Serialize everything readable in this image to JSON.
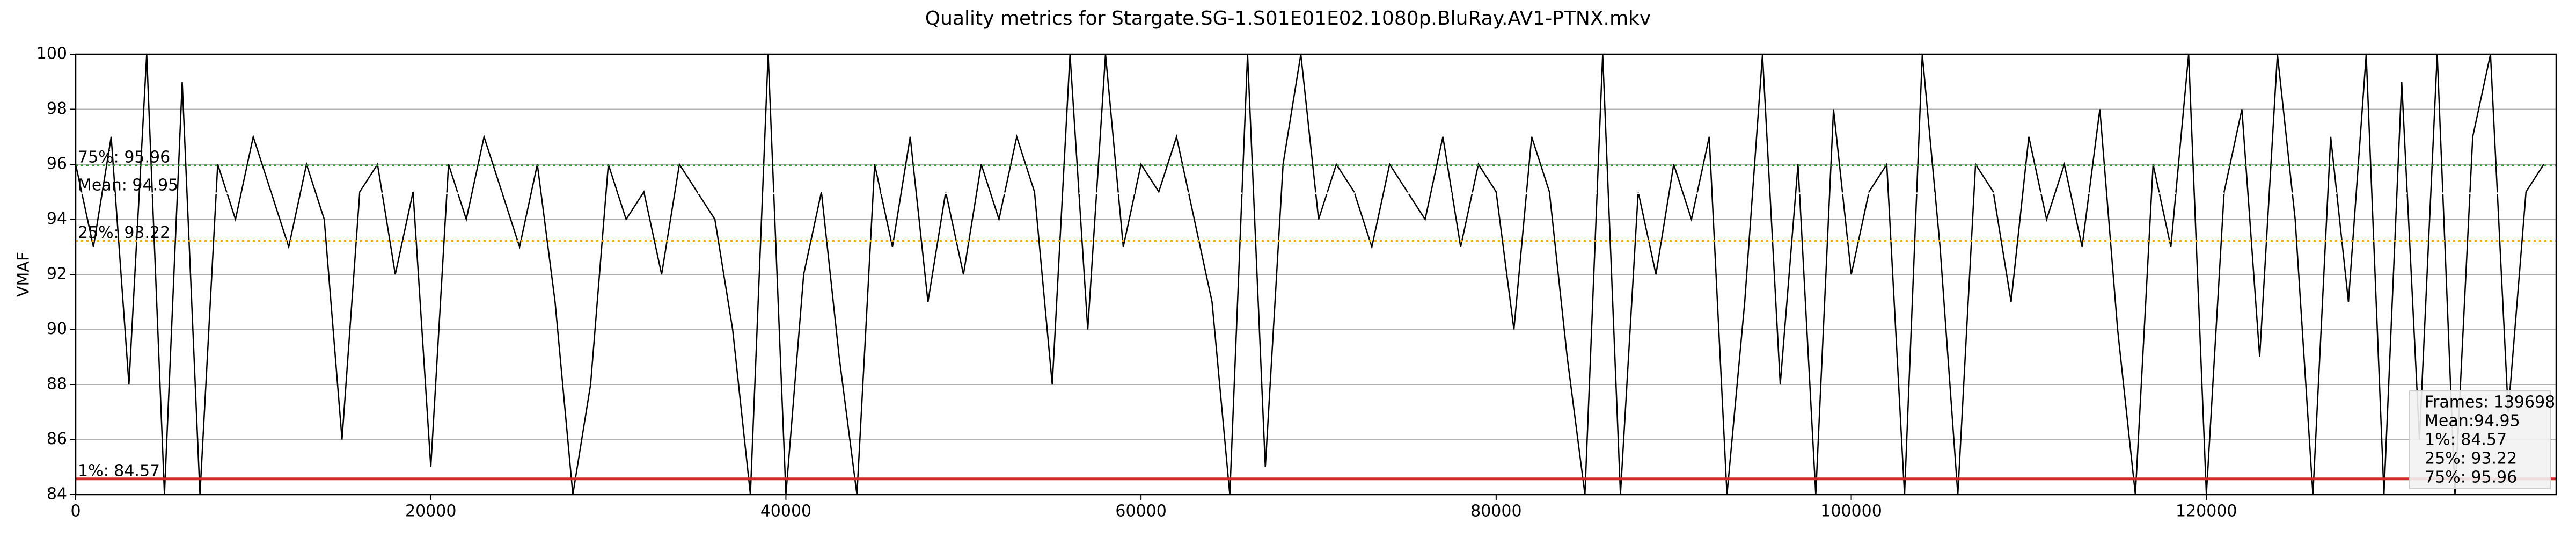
{
  "chart_data": {
    "type": "line",
    "title": "Quality metrics for Stargate.SG-1.S01E01E02.1080p.BluRay.AV1-PTNX.mkv",
    "y_label": "VMAF",
    "color": "#000000",
    "grid": true,
    "xlim": [
      0,
      139698
    ],
    "ylim": [
      84,
      100
    ],
    "xticks": [
      0,
      20000,
      40000,
      60000,
      80000,
      100000,
      120000
    ],
    "yticks": [
      84,
      86,
      88,
      90,
      92,
      94,
      96,
      98,
      100
    ],
    "x": [
      0,
      1000,
      2000,
      3000,
      4000,
      5000,
      6000,
      7000,
      8000,
      9000,
      10000,
      11000,
      12000,
      13000,
      14000,
      15000,
      16000,
      17000,
      18000,
      19000,
      20000,
      21000,
      22000,
      23000,
      24000,
      25000,
      26000,
      27000,
      28000,
      29000,
      30000,
      31000,
      32000,
      33000,
      34000,
      35000,
      36000,
      37000,
      38000,
      39000,
      40000,
      41000,
      42000,
      43000,
      44000,
      45000,
      46000,
      47000,
      48000,
      49000,
      50000,
      51000,
      52000,
      53000,
      54000,
      55000,
      56000,
      57000,
      58000,
      59000,
      60000,
      61000,
      62000,
      63000,
      64000,
      65000,
      66000,
      67000,
      68000,
      69000,
      70000,
      71000,
      72000,
      73000,
      74000,
      75000,
      76000,
      77000,
      78000,
      79000,
      80000,
      81000,
      82000,
      83000,
      84000,
      85000,
      86000,
      87000,
      88000,
      89000,
      90000,
      91000,
      92000,
      93000,
      94000,
      95000,
      96000,
      97000,
      98000,
      99000,
      100000,
      101000,
      102000,
      103000,
      104000,
      105000,
      106000,
      107000,
      108000,
      109000,
      110000,
      111000,
      112000,
      113000,
      114000,
      115000,
      116000,
      117000,
      118000,
      119000,
      120000,
      121000,
      122000,
      123000,
      124000,
      125000,
      126000,
      127000,
      128000,
      129000,
      130000,
      131000,
      132000,
      133000,
      134000,
      135000,
      136000,
      137000,
      138000,
      139000
    ],
    "values": [
      96,
      93,
      97,
      88,
      100,
      84,
      99,
      84,
      96,
      94,
      97,
      95,
      93,
      96,
      94,
      86,
      95,
      96,
      92,
      95,
      85,
      96,
      94,
      97,
      95,
      93,
      96,
      91,
      84,
      88,
      96,
      94,
      95,
      92,
      96,
      95,
      94,
      90,
      84,
      100,
      84,
      92,
      95,
      89,
      84,
      96,
      93,
      97,
      91,
      95,
      92,
      96,
      94,
      97,
      95,
      88,
      100,
      90,
      100,
      93,
      96,
      95,
      97,
      94,
      91,
      84,
      100,
      85,
      96,
      100,
      94,
      96,
      95,
      93,
      96,
      95,
      94,
      97,
      93,
      96,
      95,
      90,
      97,
      95,
      89,
      84,
      100,
      84,
      95,
      92,
      96,
      94,
      97,
      84,
      91,
      100,
      88,
      96,
      84,
      98,
      92,
      95,
      96,
      84,
      100,
      93,
      84,
      96,
      95,
      91,
      97,
      94,
      96,
      93,
      98,
      90,
      84,
      96,
      93,
      100,
      84,
      95,
      98,
      89,
      100,
      94,
      84,
      97,
      91,
      100,
      84,
      99,
      86,
      100,
      84,
      97,
      100,
      87,
      95,
      96
    ],
    "reference_lines": [
      {
        "label": "75%: 95.96",
        "value": 95.96,
        "color": "#2ca02c",
        "style": "dotted"
      },
      {
        "label": "Mean: 94.95",
        "value": 94.95,
        "color": "#ffffff",
        "style": "dotted"
      },
      {
        "label": "25%: 93.22",
        "value": 93.22,
        "color": "#ffa500",
        "style": "dotted"
      },
      {
        "label": "1%: 84.57",
        "value": 84.57,
        "color": "#d62728",
        "style": "solid"
      }
    ],
    "stats_box": [
      "Frames: 139698",
      "Mean:94.95",
      "1%: 84.57",
      "25%: 93.22",
      "75%: 95.96"
    ]
  }
}
